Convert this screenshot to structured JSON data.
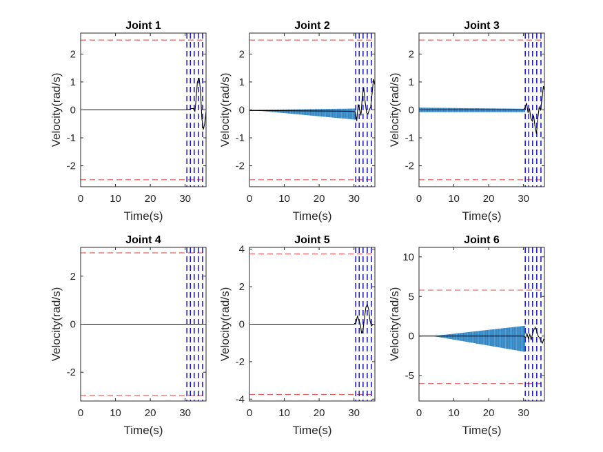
{
  "chart_data": [
    {
      "type": "line",
      "title": "Joint 1",
      "xlabel": "Time(s)",
      "ylabel": "Velocity(rad/s)",
      "xlim": [
        0,
        36
      ],
      "ylim": [
        -2.75,
        2.75
      ],
      "xticks": [
        "0",
        "10",
        "20",
        "30"
      ],
      "yticks": [
        "-2",
        "-1",
        "0",
        "1",
        "2"
      ],
      "limits": [
        2.5,
        -2.5
      ],
      "vlines": [
        30.5,
        31.5,
        32.6,
        33.8,
        35.0
      ],
      "envelope": {
        "x_start": 0,
        "x_end": 30.5,
        "amp_start": 0.0,
        "amp_upper_end": 0.01,
        "amp_lower_end": 0.01
      },
      "series": [
        {
          "x": [
            0,
            10,
            20,
            30,
            30.5,
            31.2,
            31.8,
            32.3,
            32.8,
            33.1,
            33.5,
            34.0,
            34.4,
            34.8,
            35.2,
            35.6,
            36.0
          ],
          "y": [
            0,
            0,
            0,
            0,
            0.0,
            0.02,
            0.05,
            0.05,
            -0.05,
            0.3,
            1.0,
            1.15,
            0.7,
            -0.3,
            -0.7,
            -0.5,
            -0.05
          ]
        }
      ]
    },
    {
      "type": "line",
      "title": "Joint 2",
      "xlabel": "Time(s)",
      "ylabel": "Velocity(rad/s)",
      "xlim": [
        0,
        36
      ],
      "ylim": [
        -2.75,
        2.75
      ],
      "xticks": [
        "0",
        "10",
        "20",
        "30"
      ],
      "yticks": [
        "-2",
        "-1",
        "0",
        "1",
        "2"
      ],
      "limits": [
        2.5,
        -2.5
      ],
      "vlines": [
        30.5,
        31.5,
        32.6,
        33.8,
        35.0
      ],
      "envelope": {
        "x_start": 0,
        "x_end": 30.5,
        "amp_start": 0.0,
        "amp_upper_end": 0.05,
        "amp_lower_end": 0.35
      },
      "series": [
        {
          "x": [
            0,
            10,
            20,
            30,
            30.4,
            30.8,
            31.2,
            31.6,
            32.0,
            32.4,
            32.8,
            33.2,
            33.6,
            34.0,
            34.4,
            34.8,
            35.2,
            35.6,
            36.0
          ],
          "y": [
            -0.02,
            -0.03,
            -0.04,
            -0.05,
            -0.1,
            -0.4,
            0.2,
            0.0,
            -0.2,
            0.5,
            0.8,
            0.3,
            -0.1,
            -0.15,
            0.0,
            0.1,
            0.6,
            1.1,
            0.9
          ]
        }
      ]
    },
    {
      "type": "line",
      "title": "Joint 3",
      "xlabel": "Time(s)",
      "ylabel": "Velocity(rad/s)",
      "xlim": [
        0,
        36
      ],
      "ylim": [
        -2.75,
        2.75
      ],
      "xticks": [
        "0",
        "10",
        "20",
        "30"
      ],
      "yticks": [
        "-2",
        "-1",
        "0",
        "1",
        "2"
      ],
      "limits": [
        2.5,
        -2.5
      ],
      "vlines": [
        30.5,
        31.5,
        32.6,
        33.8,
        35.0
      ],
      "envelope": {
        "x_start": 0,
        "x_end": 30.5,
        "amp_start": 0.08,
        "amp_upper_end": 0.04,
        "amp_lower_end": 0.08
      },
      "series": [
        {
          "x": [
            0,
            10,
            20,
            30,
            30.5,
            30.9,
            31.3,
            31.7,
            32.1,
            32.5,
            32.9,
            33.3,
            33.7,
            34.1,
            34.5,
            34.9,
            35.3,
            35.7,
            36.0
          ],
          "y": [
            0,
            0,
            0,
            0,
            0.1,
            0.25,
            -0.1,
            0.05,
            -0.3,
            -0.4,
            -0.2,
            -0.6,
            -0.85,
            -0.3,
            0.1,
            0.0,
            0.4,
            0.85,
            0.7
          ]
        }
      ]
    },
    {
      "type": "line",
      "title": "Joint 4",
      "xlabel": "Time(s)",
      "ylabel": "Velocity(rad/s)",
      "xlim": [
        0,
        36
      ],
      "ylim": [
        -3.2,
        3.2
      ],
      "xticks": [
        "0",
        "10",
        "20",
        "30"
      ],
      "yticks": [
        "-2",
        "0",
        "2"
      ],
      "limits": [
        2.97,
        -2.97
      ],
      "vlines": [
        30.5,
        31.5,
        32.6,
        33.8,
        35.0
      ],
      "envelope": {
        "x_start": 0,
        "x_end": 30.5,
        "amp_start": 0.0,
        "amp_upper_end": 0.01,
        "amp_lower_end": 0.01
      },
      "series": [
        {
          "x": [
            0,
            10,
            20,
            30,
            31,
            32,
            33,
            34,
            35,
            36
          ],
          "y": [
            0,
            0,
            0,
            0,
            0,
            0,
            0,
            0,
            0,
            0
          ]
        }
      ]
    },
    {
      "type": "line",
      "title": "Joint 5",
      "xlabel": "Time(s)",
      "ylabel": "Velocity(rad/s)",
      "xlim": [
        0,
        36
      ],
      "ylim": [
        -4.1,
        4.1
      ],
      "xticks": [
        "0",
        "10",
        "20",
        "30"
      ],
      "yticks": [
        "-4",
        "-2",
        "0",
        "2",
        "4"
      ],
      "limits": [
        3.75,
        -3.75
      ],
      "vlines": [
        30.5,
        31.5,
        32.6,
        33.8,
        35.0
      ],
      "envelope": {
        "x_start": 0,
        "x_end": 30.5,
        "amp_start": 0.0,
        "amp_upper_end": 0.02,
        "amp_lower_end": 0.02
      },
      "series": [
        {
          "x": [
            0,
            10,
            20,
            30,
            30.6,
            31.0,
            31.4,
            31.8,
            32.2,
            32.6,
            33.0,
            33.4,
            33.8,
            34.2,
            34.6,
            35.0,
            35.4,
            36.0
          ],
          "y": [
            0,
            0,
            0,
            0,
            0.1,
            0.45,
            0.2,
            0.0,
            -0.5,
            -0.3,
            0.3,
            0.9,
            1.05,
            0.8,
            0.2,
            -0.1,
            0.0,
            0.0
          ]
        }
      ]
    },
    {
      "type": "line",
      "title": "Joint 6",
      "xlabel": "Time(s)",
      "ylabel": "Velocity(rad/s)",
      "xlim": [
        0,
        36
      ],
      "ylim": [
        -8.2,
        11.2
      ],
      "xticks": [
        "0",
        "10",
        "20",
        "30"
      ],
      "yticks": [
        "-5",
        "0",
        "5",
        "10"
      ],
      "limits": [
        5.8,
        -6.0
      ],
      "vlines": [
        30.5,
        31.5,
        32.6,
        33.8,
        35.0
      ],
      "envelope": {
        "x_start": 4,
        "x_end": 30.5,
        "amp_start": 0.0,
        "amp_upper_end": 1.3,
        "amp_lower_end": 2.0
      },
      "series": [
        {
          "x": [
            0,
            10,
            20,
            30,
            30.6,
            31.0,
            31.4,
            31.8,
            32.2,
            32.6,
            33.0,
            33.4,
            33.8,
            34.2,
            34.6,
            35.0,
            35.4,
            35.8,
            36.0
          ],
          "y": [
            0,
            0,
            0,
            0,
            -0.2,
            0.3,
            -0.3,
            0.2,
            -0.5,
            0.3,
            0.8,
            1.1,
            0.6,
            0.0,
            -0.2,
            -0.6,
            -0.9,
            -0.4,
            -0.5
          ]
        }
      ]
    }
  ],
  "colors": {
    "limit_line": "#ec5f5f",
    "event_line": "#1f1fc4",
    "oscillation_fill": "#2d8fd6",
    "signal_line": "#000000",
    "axis": "#262626"
  }
}
